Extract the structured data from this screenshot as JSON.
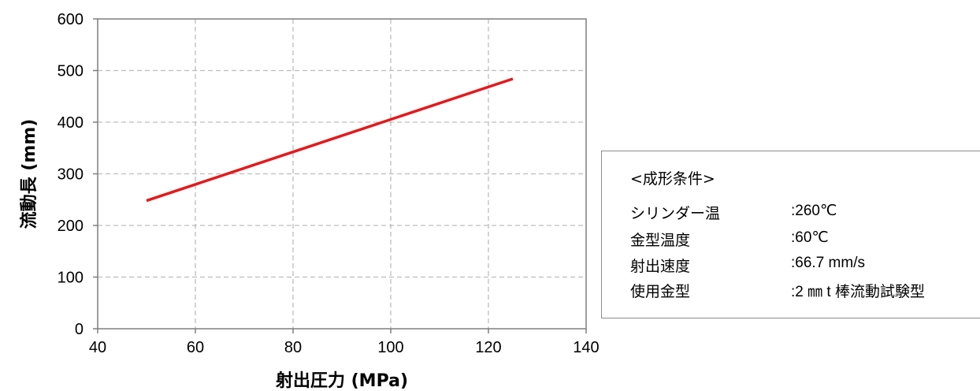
{
  "chart_data": {
    "type": "line",
    "xlabel": "射出圧力 (MPa)",
    "ylabel": "流動長 (mm)",
    "xlim": [
      40,
      140
    ],
    "ylim": [
      0,
      600
    ],
    "x_ticks": [
      "40",
      "60",
      "80",
      "100",
      "120",
      "140"
    ],
    "y_ticks": [
      "0",
      "100",
      "200",
      "300",
      "400",
      "500",
      "600"
    ],
    "grid": true,
    "series": [
      {
        "color": "#e31a1c",
        "x": [
          50,
          125
        ],
        "y": [
          248,
          484
        ]
      }
    ]
  },
  "conditions": {
    "title": "<成形条件>",
    "rows": [
      {
        "label": "シリンダー温",
        "value": ":260℃"
      },
      {
        "label": "金型温度",
        "value": ":60℃"
      },
      {
        "label": "射出速度",
        "value": ":66.7 mm/s"
      },
      {
        "label": "使用金型",
        "value": ":2 ㎜ t 棒流動試験型"
      }
    ]
  }
}
